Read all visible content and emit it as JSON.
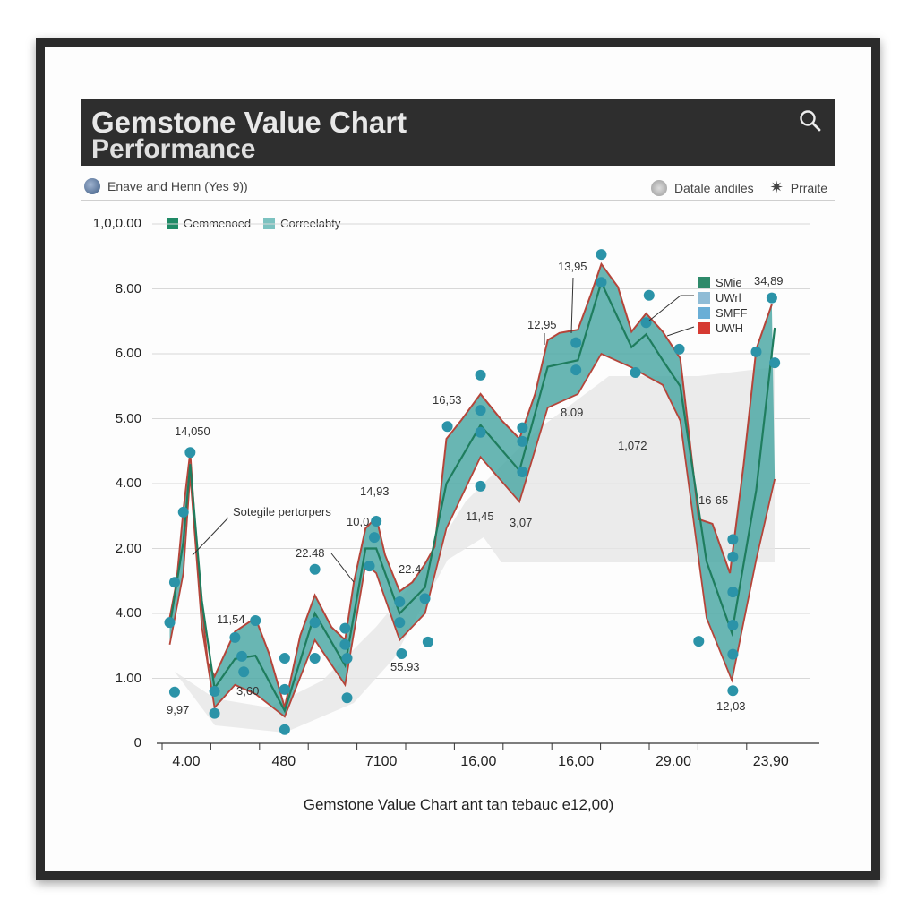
{
  "header": {
    "title": "Gemstone Value Chart",
    "subtitle": "Performance",
    "search_icon": "search-icon"
  },
  "subbar": {
    "left_label": "Enave and Henn (Yes 9))",
    "right_label_1": "Datale andiles",
    "right_label_2": "Prraite"
  },
  "colors": {
    "teal_fill": "#4fa9a6",
    "green_line": "#1f7d5e",
    "red_line": "#b5453a",
    "dot": "#2b93a8",
    "shadow": "#e4e4e4",
    "header_bg": "#2e2e2e"
  },
  "chart_data": {
    "type": "area",
    "title": "Gemstone Value Chart",
    "xlabel": "Gemstone Value Chart ant tan tebauc e12,00)",
    "ylabel": "",
    "x_ticks": [
      "4.00",
      "480",
      "7100",
      "16,00",
      "16,00",
      "29.00",
      "23,90"
    ],
    "y_ticks": [
      "0",
      "1.00",
      "4.00",
      "2.00",
      "4.00",
      "5.00",
      "6.00",
      "8.00",
      "1,0,0.00"
    ],
    "xlim": [
      -0.3,
      6.3
    ],
    "ylim": [
      0,
      8
    ],
    "grid": true,
    "legend_top": [
      {
        "name": "Gemmenoed",
        "color": "#1f8a66"
      },
      {
        "name": "Correelabty",
        "color": "#7cc2c0"
      }
    ],
    "legend_right": [
      {
        "name": "SMie",
        "color": "#2e8a6a"
      },
      {
        "name": "UWrl",
        "color": "#8fbcd6"
      },
      {
        "name": "SMFF",
        "color": "#6aaed6"
      },
      {
        "name": "UWH",
        "color": "#d63a32"
      }
    ],
    "series": [
      {
        "name": "upper",
        "x": [
          -0.17,
          -0.1,
          -0.03,
          0.04,
          0.11,
          0.22,
          0.29,
          0.5,
          0.71,
          0.85,
          1.01,
          1.17,
          1.32,
          1.49,
          1.63,
          1.72,
          1.84,
          1.95,
          2.04,
          2.19,
          2.32,
          2.45,
          2.55,
          2.67,
          2.82,
          3.02,
          3.24,
          3.42,
          3.58,
          3.71,
          3.83,
          4.02,
          4.15,
          4.26,
          4.43,
          4.57,
          4.72,
          4.89,
          5.07,
          5.26,
          5.4,
          5.58,
          5.72,
          5.85,
          6.01
        ],
        "y": [
          1.93,
          2.48,
          3.59,
          4.48,
          2.9,
          1.24,
          1.03,
          1.72,
          1.93,
          1.38,
          0.55,
          1.66,
          2.28,
          1.79,
          1.59,
          2.48,
          3.31,
          3.48,
          2.9,
          2.34,
          2.48,
          2.76,
          3.03,
          4.69,
          4.97,
          5.38,
          4.97,
          4.69,
          5.38,
          6.21,
          6.32,
          6.37,
          6.9,
          7.38,
          7.03,
          6.34,
          6.62,
          6.34,
          5.93,
          3.45,
          3.38,
          2.62,
          4.28,
          6.07,
          6.76
        ]
      },
      {
        "name": "lower",
        "x": [
          -0.17,
          -0.03,
          0.04,
          0.16,
          0.29,
          0.5,
          0.71,
          1.01,
          1.32,
          1.63,
          1.84,
          1.95,
          2.19,
          2.45,
          2.67,
          3.02,
          3.42,
          3.71,
          4.02,
          4.26,
          4.57,
          4.72,
          4.89,
          5.07,
          5.34,
          5.6,
          5.85,
          6.04
        ],
        "y": [
          1.52,
          2.62,
          4.14,
          1.79,
          0.55,
          0.9,
          0.76,
          0.41,
          1.59,
          0.9,
          2.76,
          2.62,
          1.59,
          2.0,
          3.31,
          4.41,
          3.72,
          5.17,
          5.38,
          6.0,
          5.79,
          5.66,
          5.52,
          4.97,
          1.93,
          0.97,
          2.83,
          4.07
        ]
      },
      {
        "name": "middle",
        "x": [
          -0.17,
          -0.03,
          0.04,
          0.16,
          0.29,
          0.5,
          0.71,
          1.01,
          1.32,
          1.63,
          1.84,
          1.95,
          2.19,
          2.45,
          2.67,
          3.02,
          3.42,
          3.71,
          4.02,
          4.26,
          4.57,
          4.72,
          4.89,
          5.07,
          5.34,
          5.6,
          5.85,
          6.04
        ],
        "y": [
          1.8,
          3.1,
          4.3,
          2.2,
          0.85,
          1.3,
          1.35,
          0.5,
          2.0,
          1.2,
          3.0,
          3.0,
          2.0,
          2.4,
          4.0,
          4.9,
          4.2,
          5.8,
          5.9,
          7.1,
          6.1,
          6.3,
          5.9,
          5.5,
          2.8,
          1.7,
          3.9,
          6.4
        ]
      },
      {
        "name": "points",
        "x": [
          -0.17,
          -0.12,
          -0.03,
          0.04,
          -0.12,
          0.29,
          0.29,
          0.5,
          0.57,
          0.59,
          0.71,
          1.01,
          1.01,
          1.01,
          1.32,
          1.32,
          1.32,
          1.63,
          1.63,
          1.65,
          1.65,
          1.88,
          1.95,
          1.93,
          2.19,
          2.19,
          2.21,
          2.45,
          2.48,
          2.68,
          3.02,
          3.02,
          3.02,
          3.02,
          3.45,
          3.45,
          3.45,
          4.0,
          4.0,
          4.26,
          4.26,
          4.61,
          4.72,
          4.75,
          5.06,
          5.26,
          5.61,
          5.61,
          5.61,
          5.61,
          5.61,
          5.61,
          5.85,
          6.01,
          6.04
        ],
        "y": [
          1.86,
          2.48,
          3.56,
          4.48,
          0.79,
          0.8,
          0.46,
          1.63,
          1.34,
          1.1,
          1.89,
          1.31,
          0.83,
          0.21,
          2.68,
          1.86,
          1.31,
          1.77,
          1.52,
          1.31,
          0.7,
          2.73,
          3.42,
          3.17,
          2.18,
          1.86,
          1.38,
          2.23,
          1.56,
          4.88,
          5.67,
          5.13,
          4.79,
          3.96,
          4.86,
          4.65,
          4.18,
          6.17,
          5.75,
          7.53,
          7.1,
          5.71,
          6.48,
          6.9,
          6.07,
          1.57,
          3.14,
          2.87,
          2.33,
          1.82,
          1.37,
          0.81,
          6.03,
          6.86,
          5.86
        ]
      }
    ],
    "annotations": [
      "14,050",
      "Sotegile pertorpers",
      "14,93",
      "10,0",
      "22.48",
      "22.4",
      "11,54",
      "3,60",
      "9,97",
      "55.93",
      "16,53",
      "11,45",
      "3,07",
      "8.09",
      "1,072",
      "12,95",
      "13,95",
      "16-65",
      "12,03",
      "34,89"
    ]
  }
}
